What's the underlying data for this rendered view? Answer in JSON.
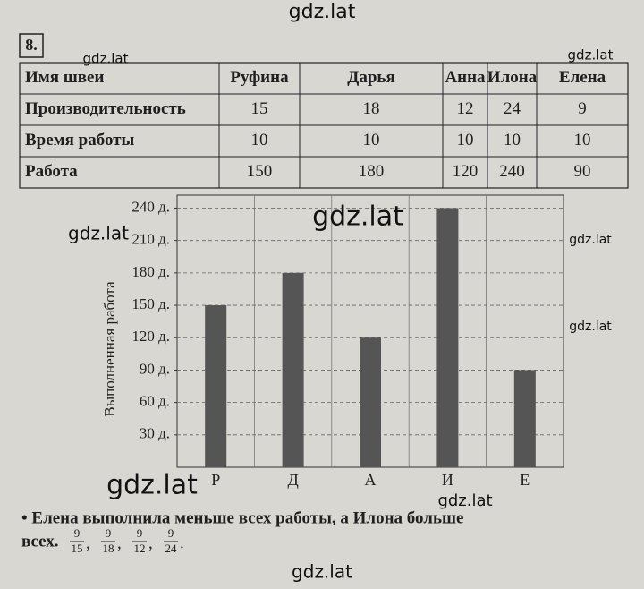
{
  "watermarks": [
    "gdz.lat",
    "gdz.lat",
    "gdz.lat",
    "gdz.lat",
    "gdz.lat",
    "gdz.lat",
    "gdz.lat",
    "gdz.lat",
    "gdz.lat",
    "gdz.lat"
  ],
  "exercise_number": "8.",
  "table": {
    "header": [
      "Имя швеи",
      "Руфина",
      "Дарья",
      "Анна",
      "Илона",
      "Елена"
    ],
    "rows": [
      [
        "Производительность",
        15,
        18,
        12,
        24,
        9
      ],
      [
        "Время работы",
        10,
        10,
        10,
        10,
        10
      ],
      [
        "Работа",
        150,
        180,
        120,
        240,
        90
      ]
    ]
  },
  "chart_data": {
    "type": "bar",
    "y_label": "Выполненная работа",
    "categories": [
      "Р",
      "Д",
      "А",
      "И",
      "Е"
    ],
    "values": [
      150,
      180,
      120,
      240,
      90
    ],
    "color": "#555555",
    "ylim": [
      0,
      252
    ],
    "yticks": [
      {
        "value": 30,
        "label": "30 д."
      },
      {
        "value": 60,
        "label": "60 д."
      },
      {
        "value": 90,
        "label": "90 д."
      },
      {
        "value": 120,
        "label": "120 д."
      },
      {
        "value": 150,
        "label": "150 д."
      },
      {
        "value": 180,
        "label": "180 д."
      },
      {
        "value": 210,
        "label": "210 д."
      },
      {
        "value": 240,
        "label": "240 д."
      }
    ],
    "grid": true
  },
  "answer": {
    "line1": "• Елена выполнила меньше всех работы, а Илона больше",
    "line2": "всех.",
    "fractions": [
      [
        "9",
        "15"
      ],
      [
        "9",
        "18"
      ],
      [
        "9",
        "12"
      ],
      [
        "9",
        "24"
      ]
    ],
    "separator": ",",
    "terminator": "."
  }
}
